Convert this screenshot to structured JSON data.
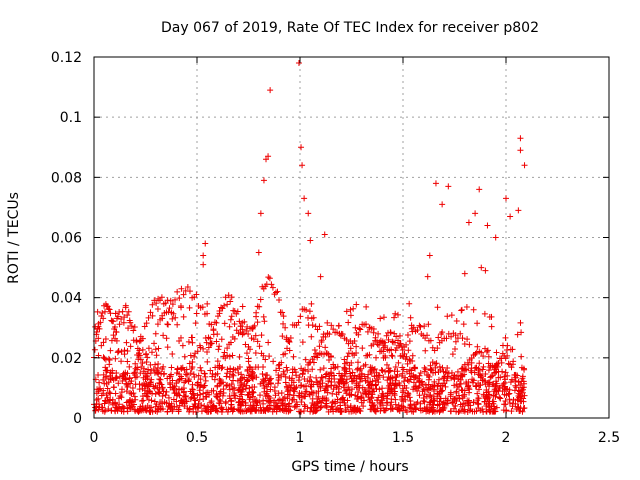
{
  "chart_data": {
    "type": "scatter",
    "title": "Day 067 of 2019, Rate Of TEC Index for receiver p802",
    "xlabel": "GPS time / hours",
    "ylabel": "ROTI / TECUs",
    "xlim": [
      0,
      2.5
    ],
    "ylim": [
      0,
      0.12
    ],
    "xticks": [
      0,
      0.5,
      1,
      1.5,
      2,
      2.5
    ],
    "xtick_labels": [
      "0",
      "0.5",
      "1",
      "1.5",
      "2",
      "2.5"
    ],
    "yticks": [
      0,
      0.02,
      0.04,
      0.06,
      0.08,
      0.1,
      0.12
    ],
    "ytick_labels": [
      "0",
      "0.02",
      "0.04",
      "0.06",
      "0.08",
      "0.1",
      "0.12"
    ],
    "grid": true,
    "marker": "+",
    "color": "#ee0000",
    "series": [
      {
        "name": "ROTI",
        "x_range": [
          0,
          2.09
        ],
        "y_range": [
          0.002,
          0.118
        ],
        "notes": "dense cloud of roughly 2000 points, mostly below 0.04 TECU/min"
      }
    ],
    "highlighted_points": [
      {
        "x": 0.995,
        "y": 0.118
      },
      {
        "x": 0.855,
        "y": 0.109
      },
      {
        "x": 1.005,
        "y": 0.09
      },
      {
        "x": 2.07,
        "y": 0.093
      },
      {
        "x": 2.07,
        "y": 0.089
      },
      {
        "x": 2.09,
        "y": 0.084
      },
      {
        "x": 0.845,
        "y": 0.087
      },
      {
        "x": 0.835,
        "y": 0.086
      },
      {
        "x": 1.01,
        "y": 0.084
      },
      {
        "x": 0.825,
        "y": 0.079
      },
      {
        "x": 1.66,
        "y": 0.078
      },
      {
        "x": 1.72,
        "y": 0.077
      },
      {
        "x": 1.87,
        "y": 0.076
      },
      {
        "x": 2.0,
        "y": 0.073
      },
      {
        "x": 1.02,
        "y": 0.073
      },
      {
        "x": 1.69,
        "y": 0.071
      },
      {
        "x": 1.04,
        "y": 0.068
      },
      {
        "x": 0.81,
        "y": 0.068
      },
      {
        "x": 2.06,
        "y": 0.069
      },
      {
        "x": 2.02,
        "y": 0.067
      },
      {
        "x": 1.85,
        "y": 0.068
      },
      {
        "x": 1.82,
        "y": 0.065
      },
      {
        "x": 1.91,
        "y": 0.064
      },
      {
        "x": 1.12,
        "y": 0.061
      },
      {
        "x": 1.95,
        "y": 0.06
      },
      {
        "x": 1.05,
        "y": 0.059
      },
      {
        "x": 0.54,
        "y": 0.058
      },
      {
        "x": 0.53,
        "y": 0.054
      },
      {
        "x": 1.63,
        "y": 0.054
      },
      {
        "x": 0.8,
        "y": 0.055
      },
      {
        "x": 0.53,
        "y": 0.051
      },
      {
        "x": 1.88,
        "y": 0.05
      },
      {
        "x": 1.9,
        "y": 0.049
      },
      {
        "x": 1.8,
        "y": 0.048
      },
      {
        "x": 1.62,
        "y": 0.047
      },
      {
        "x": 1.1,
        "y": 0.047
      }
    ]
  }
}
